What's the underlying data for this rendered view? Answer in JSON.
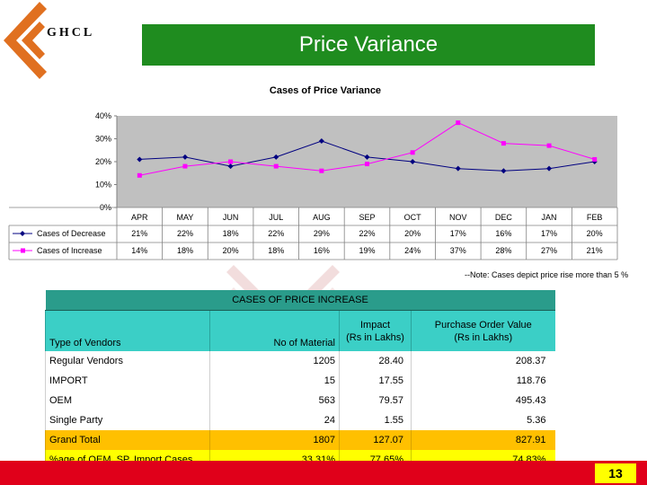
{
  "logo": {
    "text": "GHCL"
  },
  "slide": {
    "title": "Price Variance",
    "note": "--Note: Cases depict price rise more than 5 %",
    "page": "13"
  },
  "chart_data": {
    "type": "line",
    "title": "Cases of Price Variance",
    "categories": [
      "APR",
      "MAY",
      "JUN",
      "JUL",
      "AUG",
      "SEP",
      "OCT",
      "NOV",
      "DEC",
      "JAN",
      "FEB"
    ],
    "series": [
      {
        "name": "Cases of Decrease",
        "values": [
          21,
          22,
          18,
          22,
          29,
          22,
          20,
          17,
          16,
          17,
          20
        ],
        "labels": [
          "21%",
          "22%",
          "18%",
          "22%",
          "29%",
          "22%",
          "20%",
          "17%",
          "16%",
          "17%",
          "20%"
        ],
        "color": "#000080",
        "marker": "diamond"
      },
      {
        "name": "Cases of Increase",
        "values": [
          14,
          18,
          20,
          18,
          16,
          19,
          24,
          37,
          28,
          27,
          21
        ],
        "labels": [
          "14%",
          "18%",
          "20%",
          "18%",
          "16%",
          "19%",
          "24%",
          "37%",
          "28%",
          "27%",
          "21%"
        ],
        "color": "#ff00ff",
        "marker": "square"
      }
    ],
    "yticks": [
      "0%",
      "10%",
      "20%",
      "30%",
      "40%"
    ],
    "ylim": [
      0,
      40
    ],
    "plot_bg": "#c0c0c0",
    "grid": false,
    "legend": "data-table-left"
  },
  "table": {
    "caption": "CASES OF PRICE INCREASE",
    "headers": [
      "Type of Vendors",
      "No of Material",
      "Impact\n(Rs in Lakhs)",
      "Purchase Order Value\n(Rs in Lakhs)"
    ],
    "header_lines": {
      "impact": [
        "Impact",
        "(Rs in Lakhs)"
      ],
      "pov": [
        "Purchase Order Value",
        "(Rs in Lakhs)"
      ]
    },
    "rows": [
      {
        "type": "Regular Vendors",
        "count": "1205",
        "impact": "28.40",
        "pov": "208.37"
      },
      {
        "type": "IMPORT",
        "count": "15",
        "impact": "17.55",
        "pov": "118.76"
      },
      {
        "type": "OEM",
        "count": "563",
        "impact": "79.57",
        "pov": "495.43"
      },
      {
        "type": "Single Party",
        "count": "24",
        "impact": "1.55",
        "pov": "5.36"
      }
    ],
    "total": {
      "type": "Grand Total",
      "count": "1807",
      "impact": "127.07",
      "pov": "827.91"
    },
    "percent": {
      "type": "%age of OEM, SP, Import Cases",
      "count": "33.31%",
      "impact": "77.65%",
      "pov": "74.83%"
    }
  }
}
